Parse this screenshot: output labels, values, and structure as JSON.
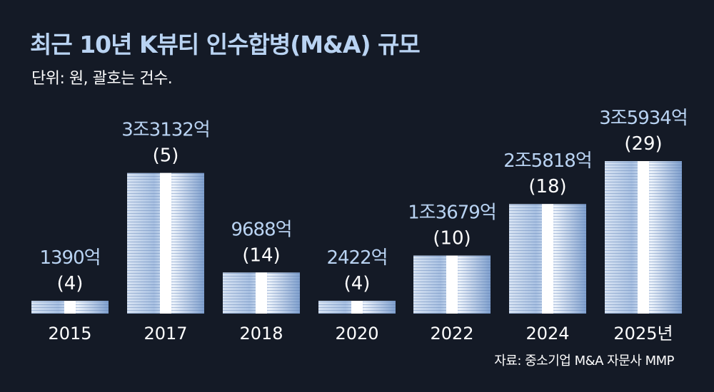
{
  "header": {
    "title": "최근 10년 K뷰티 인수합병(M&A) 규모",
    "subtitle": "단위: 원, 괄호는 건수."
  },
  "footer": {
    "source": "자료: 중소기업 M&A 자문사 MMP"
  },
  "chart_data": {
    "type": "bar",
    "title": "최근 10년 K뷰티 인수합병(M&A) 규모",
    "categories": [
      "2015",
      "2017",
      "2018",
      "2020",
      "2022",
      "2024",
      "2025년"
    ],
    "values_eok": [
      1390,
      33132,
      9688,
      2422,
      13679,
      25818,
      35934
    ],
    "value_labels": [
      "1390억",
      "3조3132억",
      "9688억",
      "2422억",
      "1조3679억",
      "2조5818억",
      "3조5934억"
    ],
    "deal_counts": [
      4,
      5,
      14,
      4,
      10,
      18,
      29
    ],
    "count_labels": [
      "(4)",
      "(5)",
      "(14)",
      "(4)",
      "(10)",
      "(18)",
      "(29)"
    ],
    "ylim": [
      0,
      35934
    ],
    "bar_style": "stacked banknotes",
    "colors": {
      "background": "#141a26",
      "title": "#b9d3f2",
      "value_label": "#b9d3f2",
      "bar": "#8fb0db",
      "band": "#ffffff"
    },
    "grid": false,
    "legend": "none"
  }
}
